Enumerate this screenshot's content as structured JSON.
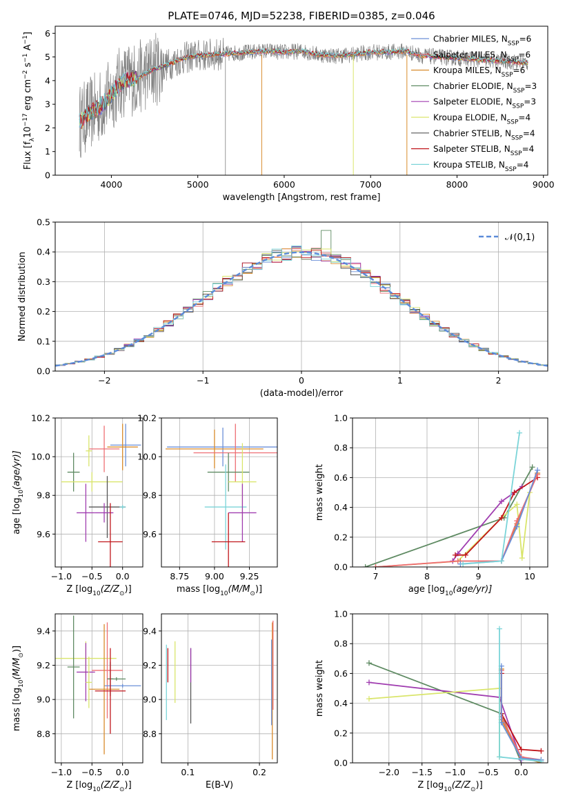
{
  "figure": {
    "title": "PLATE=0746, MJD=52238, FIBERID=0385, z=0.046"
  },
  "chart_data": [
    {
      "id": "spectrum",
      "type": "line",
      "xlabel": "wavelength [Angstrom, rest frame]",
      "ylabel_parts": [
        "Flux [f",
        "λ",
        "10",
        "−17",
        " erg cm",
        "−2",
        " s",
        "−1",
        " A",
        "−1",
        "]"
      ],
      "xlim": [
        3350,
        9050
      ],
      "ylim": [
        0,
        6.3
      ],
      "xticks": [
        4000,
        5000,
        6000,
        7000,
        8000,
        9000
      ],
      "yticks": [
        0,
        1,
        2,
        3,
        4,
        5,
        6
      ],
      "grid": false,
      "legend_position": "top-right",
      "data_color": "#7f7f7f",
      "series": [
        {
          "name": "Chabrier MILES, N",
          "sub": "SSP",
          "suffix": "=6",
          "color": "#6a8fd8"
        },
        {
          "name": "Salpeter MILES, N",
          "sub": "SSP",
          "suffix": "=6",
          "color": "#ee6e73"
        },
        {
          "name": "Kroupa MILES, N",
          "sub": "SSP",
          "suffix": "=6",
          "color": "#d88a2a"
        },
        {
          "name": "Chabrier ELODIE, N",
          "sub": "SSP",
          "suffix": "=3",
          "color": "#5e8a62"
        },
        {
          "name": "Salpeter ELODIE, N",
          "sub": "SSP",
          "suffix": "=3",
          "color": "#a03db0"
        },
        {
          "name": "Kroupa ELODIE, N",
          "sub": "SSP",
          "suffix": "=4",
          "color": "#d9e56a"
        },
        {
          "name": "Chabrier STELIB, N",
          "sub": "SSP",
          "suffix": "=4",
          "color": "#555555"
        },
        {
          "name": "Salpeter STELIB, N",
          "sub": "SSP",
          "suffix": "=4",
          "color": "#c0141a"
        },
        {
          "name": "Kroupa STELIB, N",
          "sub": "SSP",
          "suffix": "=4",
          "color": "#7ad4d8"
        }
      ],
      "model_curve_x": [
        3650,
        3750,
        3900,
        4000,
        4100,
        4200,
        4300,
        4400,
        4500,
        4600,
        4700,
        4800,
        4900,
        5000,
        5200,
        5400,
        5600,
        5800,
        6000,
        6200,
        6400,
        6600,
        6800,
        7000,
        7200,
        7400,
        7600,
        7800,
        8000,
        8200,
        8400,
        8600,
        8800
      ],
      "model_curve_y": [
        2.3,
        2.6,
        3.0,
        3.4,
        3.9,
        4.05,
        4.1,
        4.3,
        4.5,
        4.6,
        4.75,
        4.9,
        5.0,
        5.05,
        5.1,
        5.15,
        5.2,
        5.25,
        5.2,
        5.25,
        5.1,
        5.05,
        5.1,
        5.2,
        5.2,
        5.25,
        5.05,
        5.0,
        4.95,
        4.9,
        4.85,
        4.8,
        4.75
      ]
    },
    {
      "id": "residuals",
      "type": "line",
      "xlabel": "(data-model)/error",
      "ylabel": "Normed distribution",
      "xlim": [
        -2.5,
        2.5
      ],
      "ylim": [
        0,
        0.5
      ],
      "xticks": [
        -2,
        -1,
        0,
        1,
        2
      ],
      "yticks": [
        0.0,
        0.1,
        0.2,
        0.3,
        0.4,
        0.5
      ],
      "grid": true,
      "legend_position": "top-right",
      "reference": {
        "name": "𝒩(0,1)",
        "color": "#5b8bd9"
      },
      "hist_step": 0.1
    },
    {
      "id": "age_vs_Z",
      "type": "scatter",
      "xlabel_parts": [
        "Z [log",
        "10",
        "(Z/Z",
        "⊙",
        ")]"
      ],
      "ylabel_parts": [
        "age  [log",
        "10",
        "(age/yr)]"
      ],
      "xlim": [
        -1.1,
        0.33
      ],
      "ylim": [
        9.43,
        10.2
      ],
      "xticks": [
        -1.0,
        -0.5,
        0.0
      ],
      "yticks": [
        9.6,
        9.8,
        10.0,
        10.2
      ],
      "grid": true,
      "points": [
        {
          "x": 0.05,
          "y": 10.06,
          "xerr": 0.25,
          "yerr": 0.11,
          "color": "#6a8fd8"
        },
        {
          "x": 0.0,
          "y": 10.05,
          "xerr": 0.25,
          "yerr": 0.12,
          "color": "#d88a2a"
        },
        {
          "x": -0.3,
          "y": 10.04,
          "xerr": 0.25,
          "yerr": 0.12,
          "color": "#ee6e73"
        },
        {
          "x": -0.55,
          "y": 10.03,
          "xerr": 0.05,
          "yerr": 0.08,
          "color": "#d9e56a"
        },
        {
          "x": -0.8,
          "y": 9.92,
          "xerr": 0.1,
          "yerr": 0.1,
          "color": "#5e8a62"
        },
        {
          "x": -0.5,
          "y": 9.87,
          "xerr": 0.5,
          "yerr": 0.05,
          "color": "#d9e56a"
        },
        {
          "x": -0.25,
          "y": 9.74,
          "xerr": 0.3,
          "yerr": 0.16,
          "color": "#555555"
        },
        {
          "x": -0.6,
          "y": 9.71,
          "xerr": 0.15,
          "yerr": 0.15,
          "color": "#a03db0"
        },
        {
          "x": -0.3,
          "y": 9.71,
          "xerr": 0.15,
          "yerr": 0.05,
          "color": "#a03db0"
        },
        {
          "x": 0.0,
          "y": 9.74,
          "xerr": 0.05,
          "yerr": 0.01,
          "color": "#7ad4d8"
        },
        {
          "x": -0.2,
          "y": 9.56,
          "xerr": 0.2,
          "yerr": 0.2,
          "color": "#c0141a"
        }
      ]
    },
    {
      "id": "age_vs_mass",
      "type": "scatter",
      "xlabel_parts": [
        "mass [log",
        "10",
        "(M/M",
        "⊙",
        ")]"
      ],
      "xlim": [
        8.62,
        9.45
      ],
      "ylim": [
        9.43,
        10.2
      ],
      "xticks": [
        8.75,
        9.0,
        9.25
      ],
      "yticks": [
        9.6,
        9.8,
        10.0,
        10.2
      ],
      "grid": true,
      "points": [
        {
          "x": 9.06,
          "y": 10.05,
          "xerr": 0.4,
          "yerr": 0.1,
          "color": "#6a8fd8"
        },
        {
          "x": 9.0,
          "y": 10.04,
          "xerr": 0.35,
          "yerr": 0.1,
          "color": "#d88a2a"
        },
        {
          "x": 9.15,
          "y": 10.02,
          "xerr": 0.3,
          "yerr": 0.15,
          "color": "#ee6e73"
        },
        {
          "x": 9.1,
          "y": 9.92,
          "xerr": 0.15,
          "yerr": 0.1,
          "color": "#5e8a62"
        },
        {
          "x": 9.2,
          "y": 9.87,
          "xerr": 0.1,
          "yerr": 0.2,
          "color": "#d9e56a"
        },
        {
          "x": 9.08,
          "y": 9.74,
          "xerr": 0.15,
          "yerr": 0.22,
          "color": "#7ad4d8"
        },
        {
          "x": 9.2,
          "y": 9.71,
          "xerr": 0.1,
          "yerr": 0.15,
          "color": "#a03db0"
        },
        {
          "x": 9.1,
          "y": 9.56,
          "xerr": 0.12,
          "yerr": 0.15,
          "color": "#c0141a"
        }
      ]
    },
    {
      "id": "weight_vs_age",
      "type": "line",
      "xlabel_parts": [
        "age  [log",
        "10",
        "(age/yr)]"
      ],
      "ylabel": "mass weight",
      "xlim": [
        6.55,
        10.35
      ],
      "ylim": [
        0,
        1.0
      ],
      "xticks": [
        7,
        8,
        9,
        10
      ],
      "yticks": [
        0.0,
        0.2,
        0.4,
        0.6,
        0.8,
        1.0
      ],
      "grid": true,
      "series": [
        {
          "color": "#5e8a62",
          "x": [
            6.8,
            9.5,
            10.05
          ],
          "y": [
            0.0,
            0.33,
            0.67
          ]
        },
        {
          "color": "#a03db0",
          "x": [
            8.5,
            8.6,
            9.45,
            9.7,
            9.85
          ],
          "y": [
            0.04,
            0.09,
            0.44,
            0.5,
            0.54
          ]
        },
        {
          "color": "#d9e56a",
          "x": [
            8.6,
            9.45,
            9.75,
            9.85,
            10.0
          ],
          "y": [
            0.04,
            0.33,
            0.42,
            0.06,
            0.5
          ]
        },
        {
          "color": "#c0141a",
          "x": [
            8.55,
            8.75,
            9.45,
            9.7,
            10.15
          ],
          "y": [
            0.08,
            0.08,
            0.33,
            0.5,
            0.6
          ]
        },
        {
          "color": "#d88a2a",
          "x": [
            7.0,
            8.65,
            9.45,
            9.75,
            10.15
          ],
          "y": [
            0.0,
            0.04,
            0.04,
            0.29,
            0.63
          ]
        },
        {
          "color": "#ee6e73",
          "x": [
            7.0,
            8.6,
            9.45,
            9.75,
            10.15
          ],
          "y": [
            0.0,
            0.04,
            0.04,
            0.31,
            0.62
          ]
        },
        {
          "color": "#6a8fd8",
          "x": [
            8.65,
            9.45,
            9.75,
            10.15
          ],
          "y": [
            0.02,
            0.04,
            0.27,
            0.65
          ]
        },
        {
          "color": "#7ad4d8",
          "x": [
            8.7,
            9.45,
            9.8
          ],
          "y": [
            0.02,
            0.04,
            0.9
          ]
        }
      ]
    },
    {
      "id": "mass_vs_Z",
      "type": "scatter",
      "xlabel_parts": [
        "Z [log",
        "10",
        "(Z/Z",
        "⊙",
        ")]"
      ],
      "ylabel_parts": [
        "mass [log",
        "10",
        "(M/M",
        "⊙",
        ")]"
      ],
      "xlim": [
        -1.1,
        0.33
      ],
      "ylim": [
        8.63,
        9.5
      ],
      "xticks": [
        -1.0,
        -0.5,
        0.0
      ],
      "yticks": [
        8.8,
        9.0,
        9.2,
        9.4
      ],
      "grid": true,
      "points": [
        {
          "x": -0.6,
          "y": 9.24,
          "xerr": 0.5,
          "yerr": 0.1,
          "color": "#d9e56a"
        },
        {
          "x": -0.8,
          "y": 9.19,
          "xerr": 0.1,
          "yerr": 0.3,
          "color": "#5e8a62"
        },
        {
          "x": -0.25,
          "y": 9.17,
          "xerr": 0.25,
          "yerr": 0.28,
          "color": "#ee6e73"
        },
        {
          "x": -0.6,
          "y": 9.16,
          "xerr": 0.15,
          "yerr": 0.17,
          "color": "#a03db0"
        },
        {
          "x": -0.2,
          "y": 9.12,
          "xerr": 0.05,
          "yerr": 0.1,
          "color": "#555555"
        },
        {
          "x": -0.1,
          "y": 9.12,
          "xerr": 0.15,
          "yerr": 0.01,
          "color": "#5e8a62"
        },
        {
          "x": 0.0,
          "y": 9.08,
          "xerr": 0.3,
          "yerr": 0.01,
          "color": "#6a8fd8"
        },
        {
          "x": -0.3,
          "y": 9.06,
          "xerr": 0.25,
          "yerr": 0.38,
          "color": "#d88a2a"
        },
        {
          "x": -0.2,
          "y": 9.05,
          "xerr": 0.25,
          "yerr": 0.25,
          "color": "#c0141a"
        },
        {
          "x": -0.55,
          "y": 9.1,
          "xerr": 0.05,
          "yerr": 0.15,
          "color": "#d9e56a"
        }
      ]
    },
    {
      "id": "mass_vs_ebv",
      "type": "scatter",
      "xlabel": "E(B-V)",
      "xlim": [
        0.063,
        0.225
      ],
      "ylim": [
        8.63,
        9.5
      ],
      "xticks": [
        0.1,
        0.2
      ],
      "yticks": [
        8.8,
        9.0,
        9.2,
        9.4
      ],
      "grid": true,
      "points": [
        {
          "x": 0.07,
          "y": 9.1,
          "yerr": 0.22,
          "color": "#7ad4d8"
        },
        {
          "x": 0.072,
          "y": 9.2,
          "yerr": 0.1,
          "color": "#c0141a"
        },
        {
          "x": 0.082,
          "y": 9.16,
          "yerr": 0.18,
          "color": "#d9e56a"
        },
        {
          "x": 0.104,
          "y": 9.08,
          "yerr": 0.22,
          "color": "#555555"
        },
        {
          "x": 0.104,
          "y": 9.2,
          "yerr": 0.1,
          "color": "#a03db0"
        },
        {
          "x": 0.218,
          "y": 9.05,
          "yerr": 0.4,
          "color": "#d88a2a"
        },
        {
          "x": 0.219,
          "y": 9.2,
          "yerr": 0.26,
          "color": "#ee6e73"
        },
        {
          "x": 0.217,
          "y": 9.1,
          "yerr": 0.25,
          "color": "#6a8fd8"
        }
      ]
    },
    {
      "id": "weight_vs_Z",
      "type": "line",
      "xlabel_parts": [
        "Z [log",
        "10",
        "(Z/Z",
        "⊙",
        ")]"
      ],
      "ylabel": "mass weight",
      "xlim": [
        -2.55,
        0.4
      ],
      "ylim": [
        0,
        1.0
      ],
      "xticks": [
        -2.0,
        -1.5,
        -1.0,
        -0.5,
        0.0
      ],
      "yticks": [
        0.0,
        0.2,
        0.4,
        0.6,
        0.8,
        1.0
      ],
      "grid": true,
      "series": [
        {
          "color": "#5e8a62",
          "x": [
            -2.3,
            -0.3,
            0.0
          ],
          "y": [
            0.67,
            0.33,
            0.0
          ]
        },
        {
          "color": "#a03db0",
          "x": [
            -2.3,
            -0.33,
            0.0
          ],
          "y": [
            0.54,
            0.44,
            0.02
          ]
        },
        {
          "color": "#d9e56a",
          "x": [
            -2.3,
            -0.33,
            -0.33
          ],
          "y": [
            0.43,
            0.5,
            0.04
          ]
        },
        {
          "color": "#c0141a",
          "x": [
            -0.3,
            -0.3,
            0.0,
            0.3
          ],
          "y": [
            0.6,
            0.33,
            0.09,
            0.08
          ]
        },
        {
          "color": "#d88a2a",
          "x": [
            -0.3,
            -0.3,
            0.0,
            0.3
          ],
          "y": [
            0.63,
            0.29,
            0.04,
            0.0
          ]
        },
        {
          "color": "#ee6e73",
          "x": [
            -0.3,
            -0.3,
            0.0,
            0.3
          ],
          "y": [
            0.62,
            0.31,
            0.04,
            0.02
          ]
        },
        {
          "color": "#6a8fd8",
          "x": [
            -0.3,
            -0.3,
            0.0,
            0.3
          ],
          "y": [
            0.65,
            0.27,
            0.03,
            0.02
          ]
        },
        {
          "color": "#7ad4d8",
          "x": [
            -0.33,
            -0.33,
            0.3
          ],
          "y": [
            0.9,
            0.04,
            0.01
          ]
        }
      ]
    }
  ]
}
